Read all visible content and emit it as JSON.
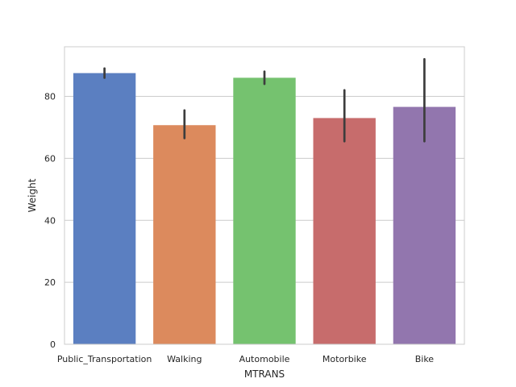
{
  "chart_data": {
    "type": "bar",
    "title": "",
    "xlabel": "MTRANS",
    "ylabel": "Weight",
    "categories": [
      "Public_Transportation",
      "Walking",
      "Automobile",
      "Motorbike",
      "Bike"
    ],
    "values": [
      87.5,
      70.7,
      86.0,
      73.0,
      76.6
    ],
    "error_bars": [
      {
        "low": 86.0,
        "high": 89.0
      },
      {
        "low": 66.5,
        "high": 75.5
      },
      {
        "low": 84.0,
        "high": 88.0
      },
      {
        "low": 65.5,
        "high": 82.0
      },
      {
        "low": 65.5,
        "high": 92.0
      }
    ],
    "colors": [
      "#5b7fc1",
      "#dc8a5d",
      "#75c26f",
      "#c76c6c",
      "#9276ae"
    ],
    "ylim": [
      0,
      96
    ],
    "yticks": [
      0,
      20,
      40,
      60,
      80
    ],
    "grid": true,
    "legend": "none"
  }
}
